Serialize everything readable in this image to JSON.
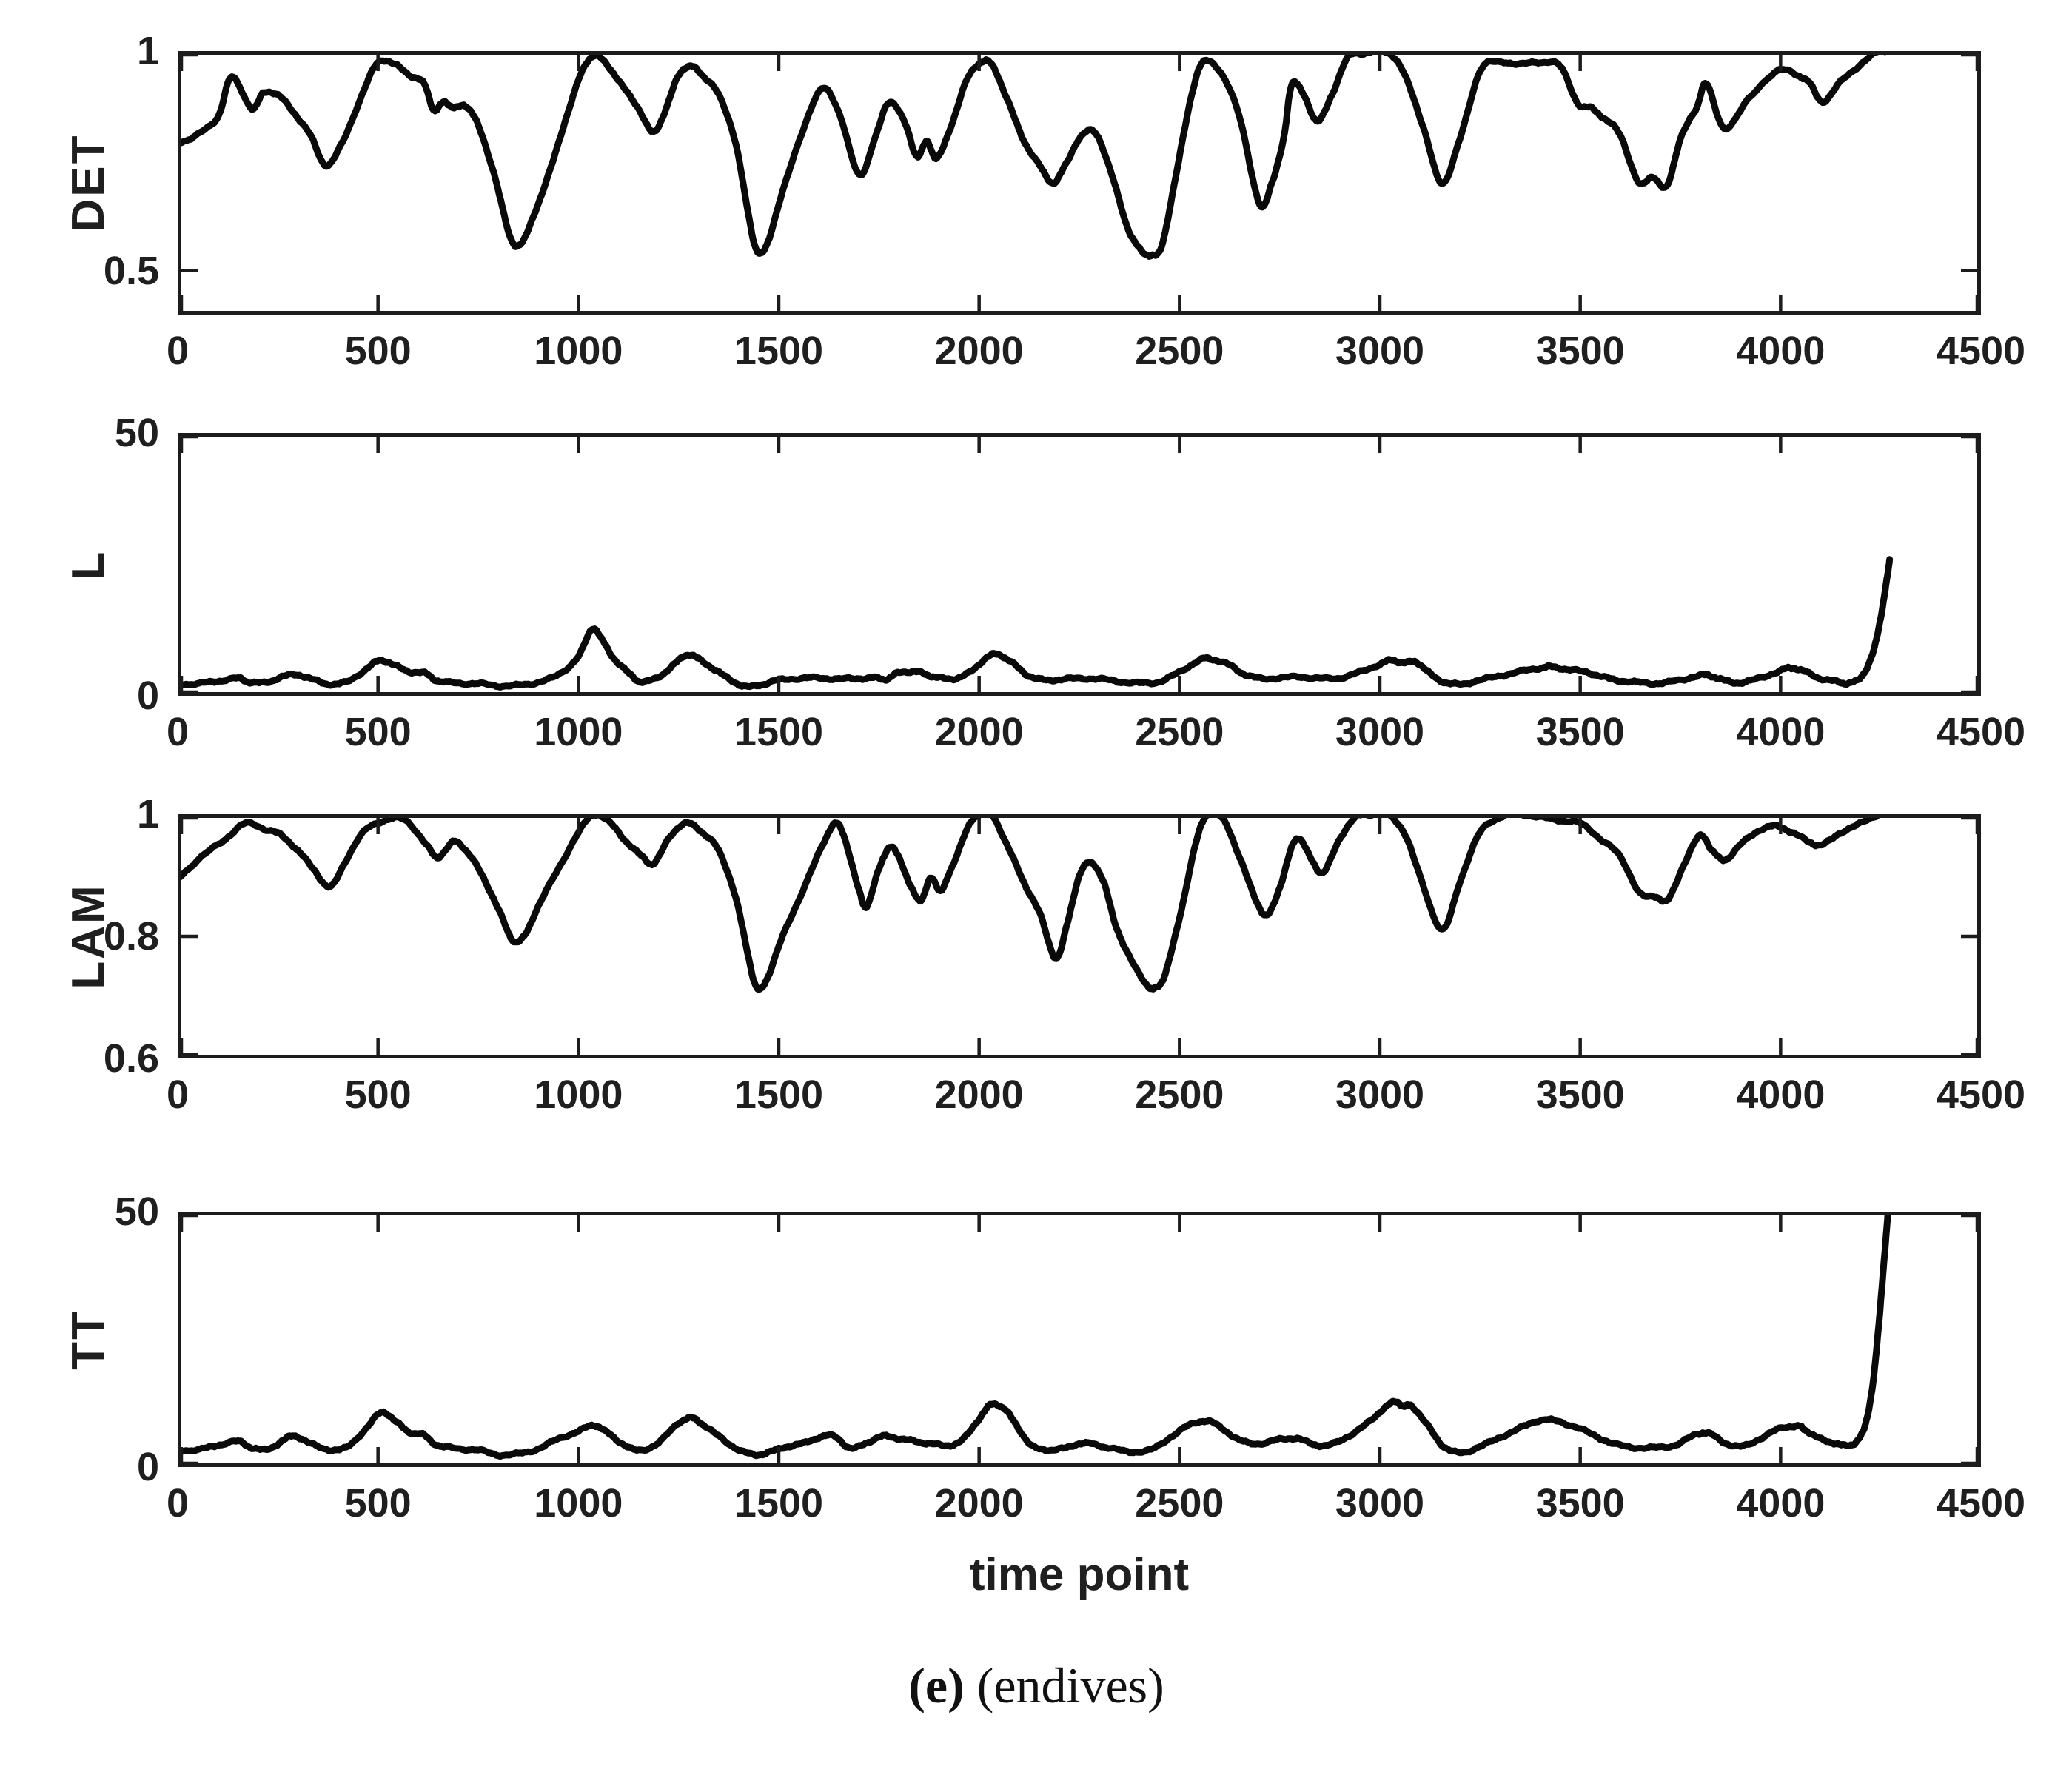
{
  "caption": {
    "label": "(e)",
    "text": " (endives)"
  },
  "chart_data": [
    {
      "type": "line",
      "ylabel": "DET",
      "xlabel": "",
      "xlim": [
        0,
        4500
      ],
      "ylim": [
        0.4,
        1.0
      ],
      "xticks": [
        0,
        500,
        1000,
        1500,
        2000,
        2500,
        3000,
        3500,
        4000,
        4500
      ],
      "xtick_labels": [
        "0",
        "500",
        "1000",
        "1500",
        "2000",
        "2500",
        "3000",
        "3500",
        "4000",
        "4500"
      ],
      "yticks": [
        1,
        0.5
      ],
      "ytick_labels": [
        "1",
        "0.5"
      ],
      "line_color": "#0a0a0a",
      "x": [
        0,
        50,
        100,
        135,
        185,
        215,
        250,
        290,
        330,
        370,
        410,
        460,
        500,
        540,
        580,
        615,
        640,
        665,
        690,
        720,
        750,
        790,
        830,
        860,
        890,
        930,
        970,
        1010,
        1040,
        1075,
        1110,
        1150,
        1185,
        1215,
        1250,
        1280,
        1310,
        1350,
        1390,
        1420,
        1445,
        1470,
        1510,
        1560,
        1610,
        1650,
        1700,
        1740,
        1775,
        1815,
        1845,
        1870,
        1895,
        1930,
        1970,
        2005,
        2035,
        2070,
        2110,
        2150,
        2185,
        2215,
        2250,
        2290,
        2330,
        2370,
        2400,
        2430,
        2455,
        2490,
        2530,
        2560,
        2600,
        2650,
        2700,
        2730,
        2760,
        2780,
        2810,
        2845,
        2880,
        2920,
        2960,
        3000,
        3030,
        3070,
        3110,
        3155,
        3200,
        3250,
        3300,
        3350,
        3400,
        3450,
        3495,
        3530,
        3560,
        3600,
        3645,
        3680,
        3715,
        3750,
        3790,
        3815,
        3860,
        3920,
        3990,
        4040,
        4070,
        4105,
        4150,
        4200,
        4245,
        4270
      ],
      "y": [
        0.79,
        0.81,
        0.85,
        0.94,
        0.87,
        0.905,
        0.9,
        0.86,
        0.81,
        0.74,
        0.79,
        0.9,
        0.975,
        0.97,
        0.945,
        0.925,
        0.865,
        0.885,
        0.87,
        0.875,
        0.83,
        0.72,
        0.575,
        0.565,
        0.63,
        0.73,
        0.85,
        0.955,
        0.99,
        0.965,
        0.92,
        0.87,
        0.815,
        0.86,
        0.945,
        0.965,
        0.945,
        0.9,
        0.8,
        0.65,
        0.545,
        0.56,
        0.68,
        0.82,
        0.915,
        0.86,
        0.72,
        0.8,
        0.885,
        0.835,
        0.76,
        0.795,
        0.755,
        0.83,
        0.935,
        0.975,
        0.965,
        0.89,
        0.8,
        0.74,
        0.7,
        0.74,
        0.8,
        0.815,
        0.72,
        0.6,
        0.55,
        0.535,
        0.555,
        0.71,
        0.9,
        0.975,
        0.955,
        0.85,
        0.65,
        0.7,
        0.8,
        0.925,
        0.9,
        0.84,
        0.9,
        0.985,
        0.995,
        1.0,
        0.99,
        0.93,
        0.82,
        0.7,
        0.8,
        0.955,
        0.975,
        0.97,
        0.975,
        0.965,
        0.88,
        0.87,
        0.845,
        0.81,
        0.7,
        0.715,
        0.69,
        0.8,
        0.87,
        0.925,
        0.825,
        0.89,
        0.955,
        0.945,
        0.93,
        0.885,
        0.93,
        0.97,
        1.0,
        1.0
      ]
    },
    {
      "type": "line",
      "ylabel": "L",
      "xlabel": "",
      "xlim": [
        0,
        4500
      ],
      "ylim": [
        0,
        50
      ],
      "xticks": [
        0,
        500,
        1000,
        1500,
        2000,
        2500,
        3000,
        3500,
        4000,
        4500
      ],
      "xtick_labels": [
        "0",
        "500",
        "1000",
        "1500",
        "2000",
        "2500",
        "3000",
        "3500",
        "4000",
        "4500"
      ],
      "yticks": [
        50,
        0
      ],
      "ytick_labels": [
        "50",
        "0"
      ],
      "line_color": "#0a0a0a",
      "x": [
        0,
        60,
        100,
        150,
        180,
        220,
        260,
        300,
        340,
        380,
        420,
        470,
        505,
        540,
        580,
        620,
        650,
        700,
        750,
        800,
        850,
        900,
        950,
        1000,
        1035,
        1060,
        1090,
        1130,
        1160,
        1200,
        1240,
        1270,
        1300,
        1340,
        1380,
        1420,
        1460,
        1500,
        1550,
        1600,
        1650,
        1700,
        1740,
        1770,
        1800,
        1840,
        1870,
        1900,
        1940,
        1980,
        2020,
        2050,
        2080,
        2120,
        2160,
        2200,
        2250,
        2300,
        2350,
        2400,
        2450,
        2500,
        2550,
        2580,
        2620,
        2660,
        2700,
        2750,
        2800,
        2850,
        2900,
        2950,
        3000,
        3030,
        3060,
        3090,
        3120,
        3160,
        3200,
        3250,
        3300,
        3350,
        3400,
        3430,
        3470,
        3520,
        3560,
        3600,
        3650,
        3700,
        3750,
        3800,
        3830,
        3860,
        3900,
        3950,
        4000,
        4030,
        4060,
        4100,
        4140,
        4170,
        4200,
        4230,
        4250,
        4265,
        4272
      ],
      "y": [
        2.2,
        2.4,
        2.8,
        3.3,
        2.6,
        2.5,
        3.6,
        4.0,
        3.0,
        2.2,
        2.6,
        5.0,
        6.8,
        5.8,
        4.6,
        4.2,
        2.8,
        2.4,
        2.3,
        1.9,
        2.0,
        2.6,
        4.0,
        7.5,
        12.8,
        10.5,
        7.0,
        4.0,
        2.6,
        3.6,
        6.0,
        7.8,
        7.0,
        5.0,
        3.0,
        1.7,
        2.2,
        3.0,
        3.3,
        3.4,
        3.2,
        3.3,
        3.4,
        3.2,
        4.4,
        4.6,
        4.0,
        3.4,
        3.3,
        4.6,
        7.4,
        7.8,
        6.4,
        4.0,
        3.0,
        3.1,
        3.3,
        3.2,
        2.7,
        2.4,
        2.7,
        4.5,
        6.8,
        7.0,
        6.0,
        4.2,
        3.3,
        3.4,
        3.6,
        3.3,
        3.4,
        4.5,
        6.0,
        6.8,
        6.2,
        6.5,
        4.5,
        2.6,
        2.2,
        3.0,
        3.8,
        4.6,
        5.3,
        5.5,
        5.0,
        4.4,
        3.5,
        2.9,
        2.5,
        2.4,
        3.0,
        3.9,
        3.7,
        2.9,
        2.5,
        3.4,
        4.8,
        5.3,
        4.6,
        3.3,
        2.7,
        2.4,
        3.5,
        8.0,
        15.0,
        22.0,
        26.0
      ]
    },
    {
      "type": "line",
      "ylabel": "LAM",
      "xlabel": "",
      "xlim": [
        0,
        4500
      ],
      "ylim": [
        0.6,
        1.0
      ],
      "xticks": [
        0,
        500,
        1000,
        1500,
        2000,
        2500,
        3000,
        3500,
        4000,
        4500
      ],
      "xtick_labels": [
        "0",
        "500",
        "1000",
        "1500",
        "2000",
        "2500",
        "3000",
        "3500",
        "4000",
        "4500"
      ],
      "yticks": [
        1,
        0.8,
        0.6
      ],
      "ytick_labels": [
        "1",
        "0.8",
        "0.6"
      ],
      "line_color": "#0a0a0a",
      "x": [
        0,
        60,
        120,
        170,
        220,
        260,
        300,
        340,
        380,
        420,
        470,
        520,
        570,
        620,
        650,
        690,
        720,
        760,
        800,
        835,
        865,
        900,
        950,
        1000,
        1040,
        1080,
        1120,
        1160,
        1190,
        1230,
        1270,
        1310,
        1350,
        1390,
        1420,
        1445,
        1470,
        1510,
        1560,
        1610,
        1640,
        1665,
        1700,
        1720,
        1750,
        1775,
        1800,
        1830,
        1855,
        1880,
        1905,
        1930,
        1970,
        2000,
        2030,
        2070,
        2110,
        2150,
        2190,
        2220,
        2250,
        2280,
        2310,
        2340,
        2380,
        2420,
        2440,
        2465,
        2500,
        2540,
        2570,
        2610,
        2650,
        2690,
        2720,
        2750,
        2780,
        2800,
        2830,
        2860,
        2900,
        2940,
        2980,
        3020,
        3060,
        3100,
        3155,
        3200,
        3250,
        3300,
        3350,
        3400,
        3450,
        3500,
        3550,
        3600,
        3650,
        3690,
        3720,
        3760,
        3800,
        3830,
        3860,
        3900,
        3950,
        3990,
        4030,
        4070,
        4105,
        4150,
        4200,
        4245,
        4270
      ],
      "y": [
        0.895,
        0.93,
        0.96,
        0.985,
        0.975,
        0.965,
        0.94,
        0.91,
        0.88,
        0.925,
        0.975,
        0.99,
        0.99,
        0.95,
        0.93,
        0.955,
        0.94,
        0.9,
        0.845,
        0.795,
        0.8,
        0.85,
        0.91,
        0.97,
        1.0,
        0.985,
        0.955,
        0.93,
        0.92,
        0.965,
        0.985,
        0.97,
        0.94,
        0.87,
        0.78,
        0.715,
        0.73,
        0.8,
        0.875,
        0.95,
        0.985,
        0.96,
        0.875,
        0.85,
        0.91,
        0.945,
        0.93,
        0.88,
        0.86,
        0.895,
        0.875,
        0.91,
        0.975,
        1.0,
        1.0,
        0.95,
        0.89,
        0.84,
        0.765,
        0.82,
        0.9,
        0.92,
        0.89,
        0.82,
        0.76,
        0.72,
        0.715,
        0.74,
        0.83,
        0.95,
        1.0,
        0.99,
        0.93,
        0.86,
        0.835,
        0.88,
        0.945,
        0.96,
        0.925,
        0.905,
        0.96,
        0.995,
        1.0,
        1.0,
        0.97,
        0.9,
        0.81,
        0.89,
        0.97,
        0.995,
        1.0,
        0.995,
        0.99,
        0.985,
        0.96,
        0.93,
        0.87,
        0.865,
        0.86,
        0.92,
        0.965,
        0.94,
        0.925,
        0.95,
        0.975,
        0.98,
        0.97,
        0.955,
        0.95,
        0.97,
        0.985,
        1.0,
        1.0
      ]
    },
    {
      "type": "line",
      "ylabel": "TT",
      "xlabel": "time point",
      "xlim": [
        0,
        4500
      ],
      "ylim": [
        0,
        50
      ],
      "xticks": [
        0,
        500,
        1000,
        1500,
        2000,
        2500,
        3000,
        3500,
        4000,
        4500
      ],
      "xtick_labels": [
        "0",
        "500",
        "1000",
        "1500",
        "2000",
        "2500",
        "3000",
        "3500",
        "4000",
        "4500"
      ],
      "yticks": [
        50,
        0
      ],
      "ytick_labels": [
        "50",
        "0"
      ],
      "line_color": "#0a0a0a",
      "x": [
        0,
        60,
        100,
        150,
        185,
        220,
        260,
        290,
        330,
        380,
        420,
        470,
        510,
        545,
        580,
        615,
        650,
        700,
        750,
        800,
        850,
        900,
        950,
        1000,
        1040,
        1070,
        1110,
        1150,
        1200,
        1250,
        1280,
        1310,
        1350,
        1400,
        1440,
        1480,
        1520,
        1560,
        1600,
        1640,
        1680,
        1720,
        1760,
        1800,
        1840,
        1880,
        1920,
        1960,
        2000,
        2030,
        2060,
        2090,
        2130,
        2170,
        2210,
        2250,
        2290,
        2330,
        2380,
        2430,
        2480,
        2530,
        2570,
        2610,
        2650,
        2700,
        2750,
        2790,
        2830,
        2870,
        2920,
        2970,
        3010,
        3040,
        3060,
        3080,
        3120,
        3160,
        3200,
        3250,
        3300,
        3350,
        3400,
        3440,
        3490,
        3540,
        3590,
        3640,
        3690,
        3740,
        3790,
        3820,
        3860,
        3900,
        3950,
        4000,
        4040,
        4060,
        4090,
        4130,
        4160,
        4190,
        4210,
        4230,
        4245,
        4258,
        4268
      ],
      "y": [
        3.2,
        3.5,
        4.3,
        5.0,
        3.8,
        3.4,
        5.0,
        6.2,
        4.6,
        3.4,
        3.8,
        7.5,
        10.8,
        8.8,
        6.8,
        6.2,
        4.2,
        3.6,
        3.3,
        2.4,
        2.6,
        3.6,
        5.5,
        7.0,
        8.2,
        6.8,
        4.6,
        3.2,
        4.8,
        8.6,
        9.6,
        8.4,
        6.0,
        3.4,
        2.4,
        3.0,
        4.0,
        4.6,
        5.8,
        6.0,
        3.6,
        4.8,
        6.0,
        5.6,
        5.0,
        4.6,
        4.2,
        5.4,
        9.5,
        12.2,
        11.6,
        8.6,
        4.2,
        3.4,
        3.6,
        4.6,
        4.4,
        3.6,
        3.0,
        3.4,
        6.0,
        8.4,
        9.0,
        7.4,
        5.2,
        4.6,
        5.4,
        5.6,
        4.6,
        4.2,
        6.0,
        8.6,
        11.5,
        12.8,
        11.8,
        12.0,
        8.0,
        4.0,
        2.8,
        4.0,
        5.8,
        7.6,
        9.2,
        9.0,
        7.8,
        6.0,
        4.4,
        3.8,
        3.8,
        4.4,
        6.4,
        6.6,
        4.8,
        4.0,
        5.6,
        7.6,
        8.0,
        7.4,
        5.8,
        4.8,
        4.2,
        5.0,
        8.0,
        16,
        28,
        40,
        50
      ]
    }
  ]
}
